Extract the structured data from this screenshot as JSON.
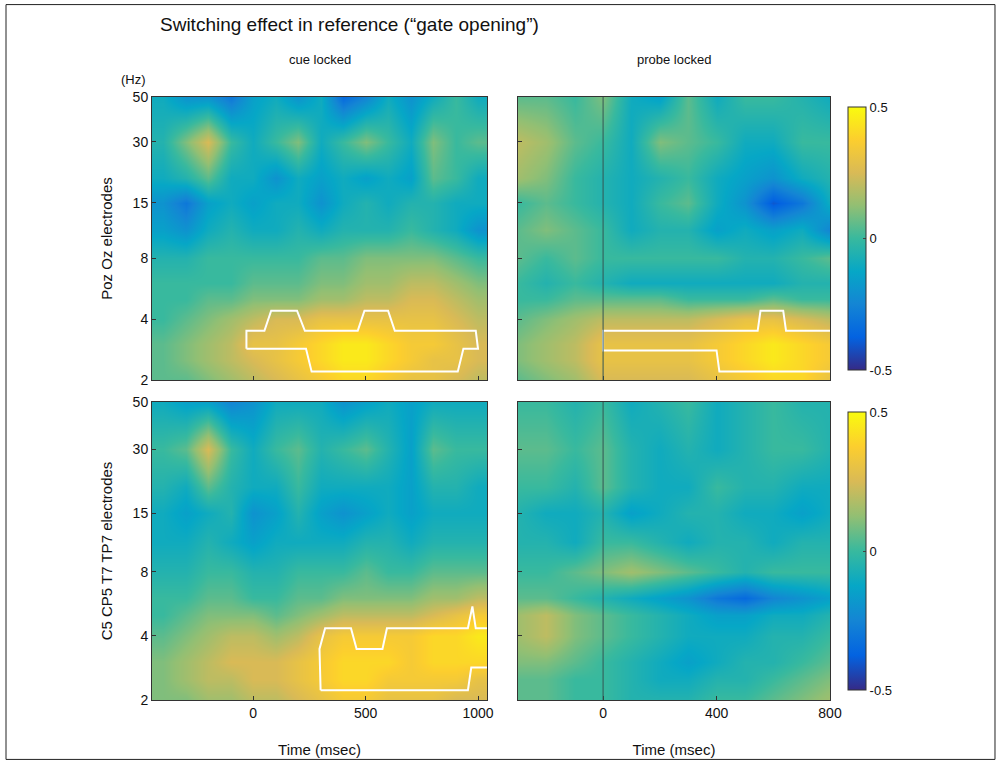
{
  "title": "Switching effect in reference (“gate opening”)",
  "chart_data": [
    {
      "type": "heatmap",
      "title": "cue locked",
      "ylabel": "Poz Oz electrodes",
      "y_unit": "(Hz)",
      "log": "y",
      "tick_labels": "y",
      "xlim": [
        -450,
        1040
      ],
      "xticks": [
        0,
        500,
        1000
      ],
      "ylim": [
        2,
        50
      ],
      "yticks": [
        2,
        4,
        8,
        15,
        30,
        50
      ],
      "zlim": [
        -0.5,
        0.5
      ],
      "x": [
        -400,
        -300,
        -200,
        -100,
        0,
        100,
        200,
        300,
        400,
        500,
        600,
        700,
        800,
        900,
        1000
      ],
      "y": [
        2,
        2.5,
        3,
        4,
        5,
        6,
        8,
        11,
        15,
        20,
        30,
        50
      ],
      "z": [
        [
          0.05,
          0.05,
          0.1,
          0.15,
          0.2,
          0.25,
          0.3,
          0.35,
          0.4,
          0.4,
          0.35,
          0.3,
          0.3,
          0.25,
          0.2
        ],
        [
          0.05,
          0.1,
          0.15,
          0.2,
          0.25,
          0.3,
          0.35,
          0.4,
          0.45,
          0.45,
          0.4,
          0.35,
          0.3,
          0.3,
          0.25
        ],
        [
          0.05,
          0.1,
          0.15,
          0.2,
          0.3,
          0.3,
          0.35,
          0.4,
          0.45,
          0.45,
          0.4,
          0.35,
          0.35,
          0.3,
          0.25
        ],
        [
          0.0,
          0.05,
          0.1,
          0.15,
          0.2,
          0.25,
          0.25,
          0.3,
          0.3,
          0.3,
          0.3,
          0.3,
          0.3,
          0.25,
          0.2
        ],
        [
          0.0,
          0.0,
          0.05,
          0.05,
          0.1,
          0.1,
          0.1,
          0.15,
          0.15,
          0.2,
          0.2,
          0.25,
          0.25,
          0.2,
          0.15
        ],
        [
          0.0,
          0.0,
          0.0,
          0.0,
          0.05,
          0.05,
          0.05,
          0.1,
          0.1,
          0.15,
          0.15,
          0.2,
          0.2,
          0.15,
          0.1
        ],
        [
          -0.05,
          -0.05,
          0.0,
          0.0,
          0.0,
          0.0,
          0.0,
          0.05,
          0.05,
          0.1,
          0.1,
          0.1,
          0.1,
          0.05,
          0.0
        ],
        [
          -0.15,
          -0.2,
          -0.1,
          -0.05,
          -0.1,
          -0.1,
          -0.05,
          -0.1,
          -0.05,
          -0.05,
          -0.05,
          0.0,
          -0.05,
          -0.1,
          -0.2
        ],
        [
          -0.2,
          -0.3,
          -0.15,
          -0.1,
          -0.15,
          -0.1,
          -0.1,
          -0.2,
          -0.1,
          -0.05,
          -0.1,
          -0.05,
          -0.05,
          -0.1,
          -0.1
        ],
        [
          -0.1,
          -0.05,
          0.05,
          -0.1,
          -0.1,
          -0.2,
          -0.1,
          -0.15,
          -0.1,
          -0.15,
          -0.1,
          -0.15,
          0.05,
          0.0,
          -0.1
        ],
        [
          -0.05,
          0.1,
          0.25,
          0.0,
          -0.1,
          0.0,
          0.1,
          -0.1,
          0.0,
          0.1,
          0.0,
          -0.1,
          0.1,
          0.0,
          0.05
        ],
        [
          -0.1,
          -0.2,
          -0.2,
          -0.3,
          -0.15,
          -0.1,
          -0.2,
          -0.1,
          -0.35,
          -0.25,
          -0.1,
          -0.2,
          -0.1,
          0.0,
          -0.1
        ]
      ],
      "clusters": [
        {
          "x": [
            -30,
            -30,
            50,
            80,
            195,
            230,
            465,
            495,
            600,
            630,
            990,
            1000,
            935,
            910,
            260,
            235,
            -30
          ],
          "y": [
            2.85,
            3.5,
            3.5,
            4.4,
            4.4,
            3.5,
            3.5,
            4.4,
            4.4,
            3.5,
            3.5,
            2.85,
            2.85,
            2.2,
            2.2,
            2.85,
            2.85
          ]
        }
      ]
    },
    {
      "type": "heatmap",
      "title": "probe locked",
      "log": "y",
      "tick_labels": false,
      "xlim": [
        -300,
        800
      ],
      "xticks": [
        0,
        400,
        800
      ],
      "ylim": [
        2,
        50
      ],
      "yticks": [
        2,
        4,
        8,
        15,
        30,
        50
      ],
      "zlim": [
        -0.5,
        0.5
      ],
      "zticks": [
        -0.5,
        0,
        0.5
      ],
      "event_time": 0,
      "x": [
        -300,
        -200,
        -100,
        0,
        100,
        200,
        300,
        400,
        500,
        600,
        700,
        800
      ],
      "y": [
        2,
        2.5,
        3,
        4,
        5,
        6,
        8,
        11,
        15,
        20,
        30,
        50
      ],
      "z": [
        [
          0.05,
          0.1,
          0.15,
          0.25,
          0.25,
          0.25,
          0.25,
          0.3,
          0.35,
          0.4,
          0.4,
          0.3
        ],
        [
          0.1,
          0.15,
          0.2,
          0.3,
          0.3,
          0.3,
          0.3,
          0.35,
          0.4,
          0.45,
          0.4,
          0.35
        ],
        [
          0.1,
          0.15,
          0.2,
          0.3,
          0.3,
          0.3,
          0.3,
          0.35,
          0.4,
          0.45,
          0.4,
          0.35
        ],
        [
          0.05,
          0.1,
          0.15,
          0.2,
          0.2,
          0.2,
          0.2,
          0.25,
          0.3,
          0.3,
          0.25,
          0.2
        ],
        [
          0.0,
          0.0,
          0.05,
          0.05,
          0.05,
          0.05,
          0.0,
          0.0,
          0.0,
          0.05,
          0.0,
          0.0
        ],
        [
          0.0,
          -0.05,
          0.0,
          -0.05,
          -0.1,
          -0.1,
          -0.1,
          -0.1,
          -0.1,
          -0.1,
          -0.05,
          -0.05
        ],
        [
          0.05,
          0.0,
          0.05,
          0.0,
          0.0,
          0.0,
          0.0,
          0.0,
          -0.05,
          -0.05,
          0.0,
          0.05
        ],
        [
          0.05,
          0.1,
          0.05,
          0.0,
          -0.1,
          -0.05,
          -0.05,
          -0.15,
          -0.1,
          -0.15,
          -0.1,
          -0.25
        ],
        [
          0.0,
          0.05,
          0.0,
          -0.05,
          -0.1,
          0.0,
          0.05,
          -0.1,
          -0.2,
          -0.4,
          -0.3,
          -0.1
        ],
        [
          0.15,
          0.1,
          0.0,
          -0.05,
          -0.1,
          -0.05,
          0.0,
          -0.1,
          -0.15,
          -0.2,
          -0.1,
          -0.05
        ],
        [
          0.2,
          0.15,
          0.05,
          0.0,
          -0.1,
          0.1,
          0.05,
          0.0,
          -0.1,
          -0.1,
          0.0,
          0.0
        ],
        [
          0.05,
          0.05,
          0.0,
          0.1,
          -0.1,
          -0.15,
          0.05,
          -0.1,
          0.0,
          0.0,
          -0.05,
          -0.1
        ]
      ],
      "clusters": [
        {
          "x": [
            850,
            645,
            635,
            555,
            545,
            0,
            0,
            400,
            410,
            850
          ],
          "y": [
            3.5,
            3.5,
            4.4,
            4.4,
            3.5,
            3.5,
            2.8,
            2.8,
            2.2,
            2.2
          ]
        }
      ]
    },
    {
      "type": "heatmap",
      "ylabel": "C5 CP5 T7 TP7 electrodes",
      "xlabel": "Time (msec)",
      "log": "y",
      "tick_labels": true,
      "xlim": [
        -450,
        1040
      ],
      "xticks": [
        0,
        500,
        1000
      ],
      "ylim": [
        2,
        50
      ],
      "yticks": [
        2,
        4,
        8,
        15,
        30,
        50
      ],
      "zlim": [
        -0.5,
        0.5
      ],
      "x": [
        -400,
        -300,
        -200,
        -100,
        0,
        100,
        200,
        300,
        400,
        500,
        600,
        700,
        800,
        900,
        1000
      ],
      "y": [
        2,
        2.5,
        3,
        4,
        5,
        6,
        8,
        11,
        15,
        20,
        30,
        50
      ],
      "z": [
        [
          0.1,
          0.1,
          0.15,
          0.15,
          0.2,
          0.2,
          0.25,
          0.3,
          0.35,
          0.35,
          0.3,
          0.3,
          0.3,
          0.25,
          0.25
        ],
        [
          0.1,
          0.15,
          0.2,
          0.2,
          0.25,
          0.25,
          0.3,
          0.35,
          0.4,
          0.4,
          0.35,
          0.35,
          0.35,
          0.35,
          0.3
        ],
        [
          0.1,
          0.15,
          0.2,
          0.25,
          0.25,
          0.25,
          0.3,
          0.35,
          0.4,
          0.4,
          0.4,
          0.35,
          0.4,
          0.4,
          0.4
        ],
        [
          0.05,
          0.1,
          0.15,
          0.2,
          0.2,
          0.15,
          0.2,
          0.3,
          0.35,
          0.35,
          0.35,
          0.35,
          0.4,
          0.4,
          0.45
        ],
        [
          0.0,
          0.05,
          0.1,
          0.1,
          0.1,
          0.05,
          0.1,
          0.15,
          0.2,
          0.2,
          0.2,
          0.2,
          0.25,
          0.3,
          0.35
        ],
        [
          0.0,
          0.0,
          0.05,
          0.05,
          0.0,
          0.0,
          0.05,
          0.05,
          0.1,
          0.1,
          0.1,
          0.1,
          0.15,
          0.15,
          0.2
        ],
        [
          -0.05,
          -0.05,
          0.0,
          0.0,
          -0.05,
          -0.05,
          0.0,
          0.0,
          0.0,
          0.05,
          0.0,
          0.0,
          0.05,
          0.05,
          0.05
        ],
        [
          -0.1,
          -0.1,
          -0.05,
          -0.1,
          -0.15,
          -0.1,
          -0.1,
          -0.1,
          -0.1,
          -0.05,
          -0.05,
          -0.1,
          -0.05,
          -0.05,
          -0.05
        ],
        [
          -0.1,
          -0.15,
          -0.1,
          -0.05,
          -0.2,
          -0.15,
          -0.05,
          -0.15,
          -0.2,
          -0.15,
          -0.1,
          -0.15,
          -0.1,
          -0.1,
          -0.1
        ],
        [
          -0.05,
          -0.1,
          0.05,
          -0.05,
          -0.1,
          -0.1,
          0.0,
          -0.1,
          -0.1,
          -0.1,
          -0.1,
          -0.15,
          -0.05,
          -0.05,
          -0.1
        ],
        [
          0.0,
          0.05,
          0.25,
          0.0,
          -0.1,
          0.0,
          0.05,
          -0.05,
          0.0,
          0.05,
          -0.05,
          -0.15,
          0.05,
          0.0,
          0.0
        ],
        [
          -0.1,
          -0.15,
          -0.15,
          -0.25,
          -0.2,
          -0.1,
          -0.1,
          -0.1,
          -0.2,
          -0.15,
          -0.1,
          -0.15,
          -0.1,
          -0.1,
          -0.1
        ]
      ],
      "clusters": [
        {
          "x": [
            300,
            295,
            320,
            435,
            460,
            575,
            595,
            955,
            975,
            990,
            1100,
            1100,
            970,
            955,
            300
          ],
          "y": [
            2.22,
            3.47,
            4.34,
            4.34,
            3.47,
            3.47,
            4.34,
            4.34,
            5.5,
            4.34,
            4.34,
            2.84,
            2.84,
            2.22,
            2.22
          ]
        }
      ]
    },
    {
      "type": "heatmap",
      "xlabel": "Time (msec)",
      "log": "y",
      "tick_labels": "x",
      "xlim": [
        -300,
        800
      ],
      "xticks": [
        0,
        400,
        800
      ],
      "ylim": [
        2,
        50
      ],
      "yticks": [
        2,
        4,
        8,
        15,
        30,
        50
      ],
      "zlim": [
        -0.5,
        0.5
      ],
      "zticks": [
        -0.5,
        0,
        0.5
      ],
      "event_time": 0,
      "x": [
        -300,
        -200,
        -100,
        0,
        100,
        200,
        300,
        400,
        500,
        600,
        700,
        800
      ],
      "y": [
        2,
        2.5,
        3,
        4,
        5,
        6,
        8,
        11,
        15,
        20,
        30,
        50
      ],
      "z": [
        [
          0.05,
          0.05,
          0.0,
          0.0,
          -0.05,
          -0.05,
          -0.05,
          0.0,
          0.0,
          0.05,
          0.1,
          0.15
        ],
        [
          0.05,
          0.05,
          0.0,
          0.0,
          -0.05,
          -0.1,
          -0.1,
          -0.05,
          -0.05,
          0.0,
          0.05,
          0.1
        ],
        [
          0.1,
          0.1,
          0.05,
          0.0,
          -0.05,
          -0.1,
          -0.15,
          -0.1,
          -0.05,
          -0.05,
          0.0,
          0.05
        ],
        [
          0.15,
          0.2,
          0.1,
          0.05,
          0.0,
          -0.05,
          -0.1,
          -0.1,
          -0.1,
          -0.05,
          -0.05,
          0.0
        ],
        [
          0.15,
          0.2,
          0.1,
          0.05,
          0.0,
          -0.05,
          -0.1,
          -0.15,
          -0.15,
          -0.1,
          -0.1,
          -0.05
        ],
        [
          0.05,
          0.05,
          0.0,
          -0.05,
          -0.1,
          -0.15,
          -0.2,
          -0.3,
          -0.35,
          -0.25,
          -0.2,
          -0.15
        ],
        [
          0.0,
          0.0,
          0.05,
          0.1,
          0.15,
          0.1,
          0.05,
          0.0,
          -0.05,
          0.0,
          0.0,
          0.0
        ],
        [
          -0.05,
          -0.05,
          -0.1,
          0.0,
          0.0,
          -0.05,
          -0.1,
          -0.05,
          -0.05,
          -0.1,
          -0.05,
          -0.05
        ],
        [
          -0.05,
          -0.1,
          -0.1,
          -0.05,
          -0.15,
          -0.1,
          -0.05,
          -0.05,
          -0.1,
          -0.1,
          -0.15,
          -0.1
        ],
        [
          0.0,
          0.0,
          -0.05,
          0.05,
          -0.05,
          -0.1,
          -0.1,
          0.0,
          -0.05,
          -0.05,
          -0.1,
          -0.1
        ],
        [
          0.05,
          0.05,
          0.0,
          0.05,
          -0.05,
          -0.1,
          -0.05,
          -0.1,
          -0.05,
          0.0,
          0.0,
          -0.05
        ],
        [
          0.0,
          0.0,
          -0.05,
          0.0,
          -0.1,
          -0.05,
          0.0,
          -0.1,
          -0.05,
          0.0,
          -0.05,
          -0.05
        ]
      ],
      "clusters": []
    }
  ]
}
